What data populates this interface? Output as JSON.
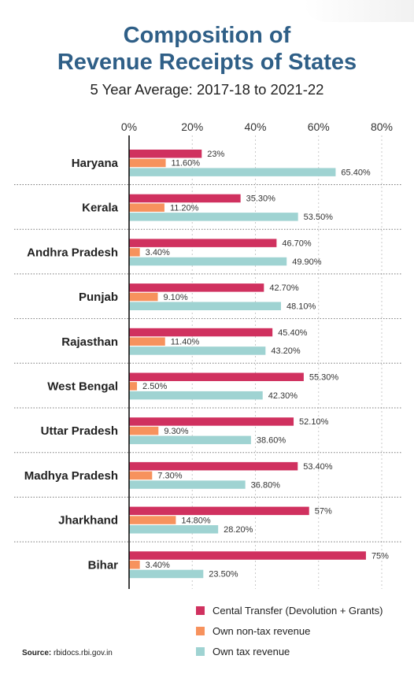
{
  "header": {
    "title_line1": "Composition of",
    "title_line2": "Revenue Receipts of States",
    "subtitle": "5 Year Average: 2017-18 to 2021-22"
  },
  "source": {
    "label": "Source:",
    "text": "rbidocs.rbi.gov.in"
  },
  "chart_data": {
    "type": "bar",
    "orientation": "horizontal",
    "title": "Composition of Revenue Receipts of States",
    "subtitle": "5 Year Average: 2017-18 to 2021-22",
    "xlim": [
      0,
      80
    ],
    "x_ticks": [
      0,
      20,
      40,
      60,
      80
    ],
    "x_tick_labels": [
      "0%",
      "20%",
      "40%",
      "60%",
      "80%"
    ],
    "grid": "vertical dashed",
    "legend_position": "bottom-right",
    "categories": [
      "Haryana",
      "Kerala",
      "Andhra Pradesh",
      "Punjab",
      "Rajasthan",
      "West Bengal",
      "Uttar Pradesh",
      "Madhya Pradesh",
      "Jharkhand",
      "Bihar"
    ],
    "series": [
      {
        "name": "Cental Transfer (Devolution + Grants)",
        "color": "#d0315f",
        "values": [
          23,
          35.3,
          46.7,
          42.7,
          45.4,
          55.3,
          52.1,
          53.4,
          57,
          75
        ],
        "labels": [
          "23%",
          "35.30%",
          "46.70%",
          "42.70%",
          "45.40%",
          "55.30%",
          "52.10%",
          "53.40%",
          "57%",
          "75%"
        ]
      },
      {
        "name": "Own non-tax revenue",
        "color": "#f7925d",
        "values": [
          11.6,
          11.2,
          3.4,
          9.1,
          11.4,
          2.5,
          9.3,
          7.3,
          14.8,
          3.4
        ],
        "labels": [
          "11.60%",
          "11.20%",
          "3.40%",
          "9.10%",
          "11.40%",
          "2.50%",
          "9.30%",
          "7.30%",
          "14.80%",
          "3.40%"
        ]
      },
      {
        "name": "Own tax revenue",
        "color": "#9fd3d2",
        "values": [
          65.4,
          53.5,
          49.9,
          48.1,
          43.2,
          42.3,
          38.6,
          36.8,
          28.2,
          23.5
        ],
        "labels": [
          "65.40%",
          "53.50%",
          "49.90%",
          "48.10%",
          "43.20%",
          "42.30%",
          "38.60%",
          "36.80%",
          "28.20%",
          "23.50%"
        ]
      }
    ]
  }
}
